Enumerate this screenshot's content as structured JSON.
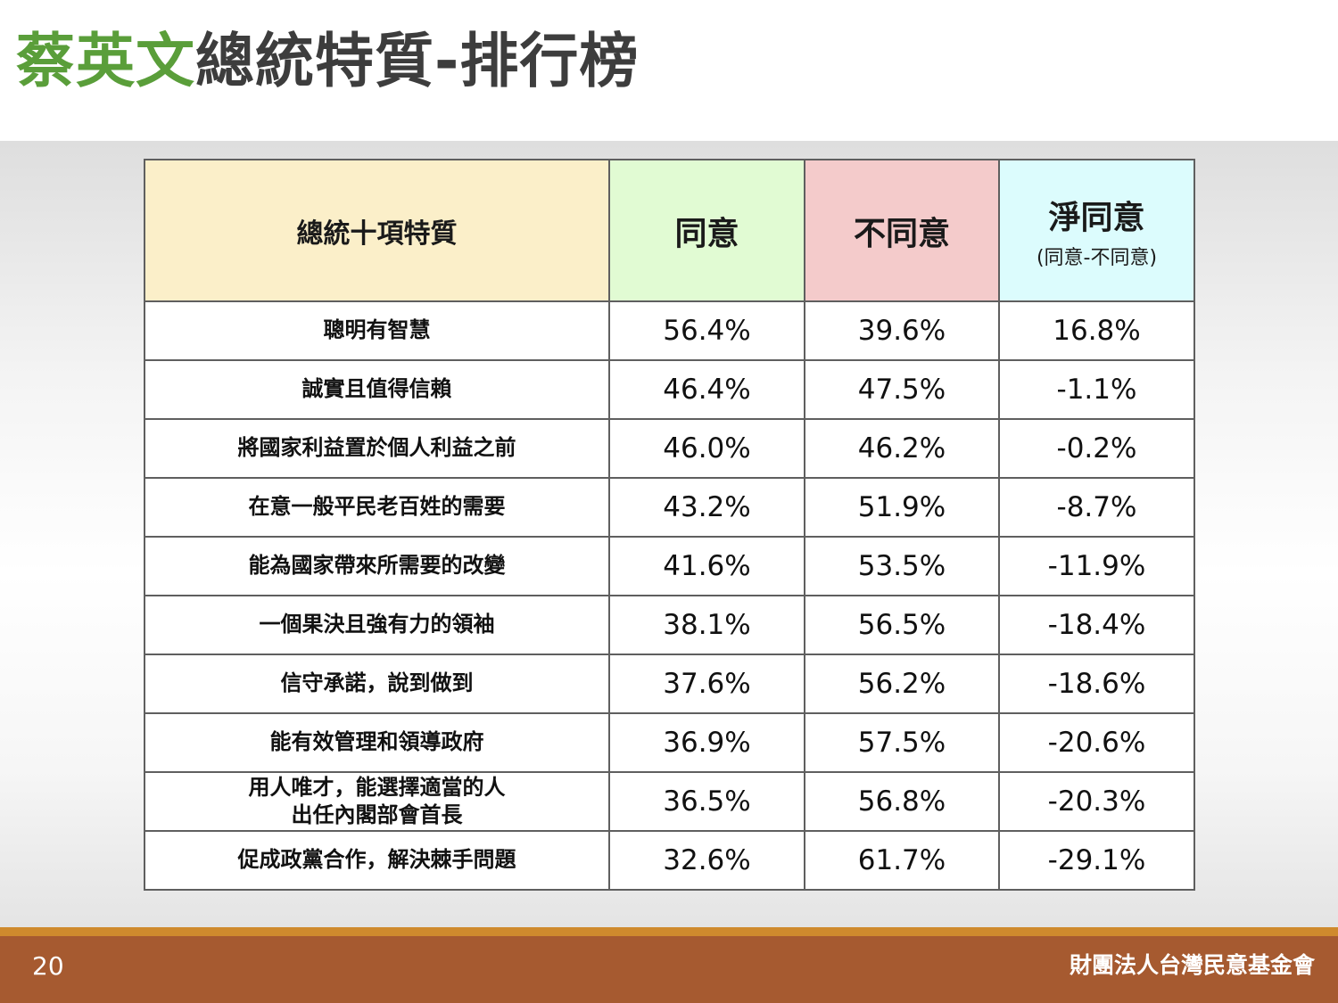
{
  "slide": {
    "title_highlight": "蔡英文",
    "title_rest": "總統特質-排行榜",
    "page_number": "20",
    "organization": "財團法人台灣民意基金會"
  },
  "table": {
    "headers": {
      "trait": "總統十項特質",
      "agree": "同意",
      "disagree": "不同意",
      "net": "淨同意",
      "net_sub": "(同意-不同意)"
    },
    "rows": [
      {
        "trait": "聰明有智慧",
        "agree": "56.4%",
        "disagree": "39.6%",
        "net": "16.8%"
      },
      {
        "trait": "誠實且值得信賴",
        "agree": "46.4%",
        "disagree": "47.5%",
        "net": "-1.1%"
      },
      {
        "trait": "將國家利益置於個人利益之前",
        "agree": "46.0%",
        "disagree": "46.2%",
        "net": "-0.2%"
      },
      {
        "trait": "在意一般平民老百姓的需要",
        "agree": "43.2%",
        "disagree": "51.9%",
        "net": "-8.7%"
      },
      {
        "trait": "能為國家帶來所需要的改變",
        "agree": "41.6%",
        "disagree": "53.5%",
        "net": "-11.9%"
      },
      {
        "trait": "一個果決且強有力的領袖",
        "agree": "38.1%",
        "disagree": "56.5%",
        "net": "-18.4%"
      },
      {
        "trait": "信守承諾，說到做到",
        "agree": "37.6%",
        "disagree": "56.2%",
        "net": "-18.6%"
      },
      {
        "trait": "能有效管理和領導政府",
        "agree": "36.9%",
        "disagree": "57.5%",
        "net": "-20.6%"
      },
      {
        "trait": "用人唯才，能選擇適當的人\n出任內閣部會首長",
        "agree": "36.5%",
        "disagree": "56.8%",
        "net": "-20.3%"
      },
      {
        "trait": "促成政黨合作，解決棘手問題",
        "agree": "32.6%",
        "disagree": "61.7%",
        "net": "-29.1%"
      }
    ]
  },
  "colors": {
    "title_green": "#5a9e3a",
    "title_gray": "#3d3d3d",
    "positive_net": "#1c2ad8",
    "negative_net": "#a11616",
    "header_trait_bg": "#fbefc9",
    "header_agree_bg": "#e1fbd3",
    "header_disagree_bg": "#f4cbcb",
    "header_net_bg": "#dcfcfd",
    "footer_brown": "#a65a30",
    "footer_orange": "#cf8a2d"
  }
}
